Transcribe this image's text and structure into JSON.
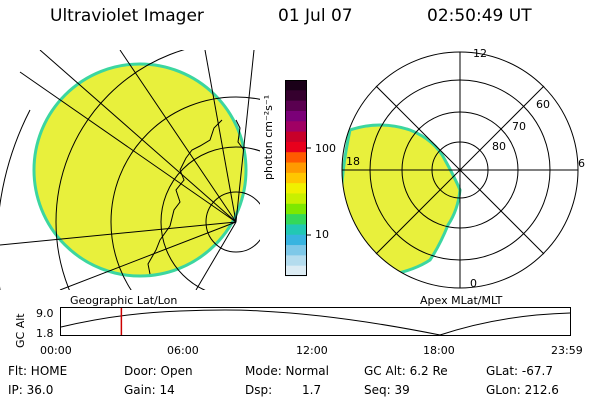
{
  "header": {
    "title": "Ultraviolet Imager",
    "date": "01 Jul 07",
    "time": "02:50:49 UT"
  },
  "colorbar": {
    "unit_label": "photon cm⁻²s⁻¹",
    "ticks": [
      "100",
      "10"
    ],
    "colors": [
      "#1a0018",
      "#35002e",
      "#5a0050",
      "#7b0078",
      "#a00064",
      "#c8002a",
      "#e8001c",
      "#ff5a00",
      "#ff9a00",
      "#ffc600",
      "#f0f000",
      "#c8f000",
      "#7ee800",
      "#34d85a",
      "#22c8b4",
      "#38b4e0",
      "#7ec8e8",
      "#b4dcee",
      "#dcecf4"
    ]
  },
  "left_map": {
    "caption": "Geographic Lat/Lon",
    "fill_color": "#e8f03c",
    "edge_color": "#3cd6a0"
  },
  "right_map": {
    "caption": "Apex MLat/MLT",
    "mlt_labels": {
      "top": "12",
      "left": "18",
      "right": "6",
      "bottom": "0"
    },
    "lat_labels": [
      "60",
      "70",
      "80"
    ]
  },
  "timeline": {
    "axis_label": "GC Alt",
    "y_ticks": [
      "9.0",
      "1.8"
    ],
    "x_ticks": [
      "00:00",
      "06:00",
      "12:00",
      "18:00",
      "23:59"
    ],
    "marker_time": "02:50:49",
    "marker_color": "#cc0000"
  },
  "status": {
    "flt": "Flt: HOME",
    "ip": "IP: 36.0",
    "door": "Door: Open",
    "gain": "Gain: 14",
    "mode": "Mode: Normal",
    "dsp": "Dsp:",
    "dsp_value": "1.7",
    "gc_alt": "GC Alt: 6.2 Re",
    "seq": "Seq: 39",
    "glat": "GLat: -67.7",
    "glon": "GLon: 212.6"
  }
}
